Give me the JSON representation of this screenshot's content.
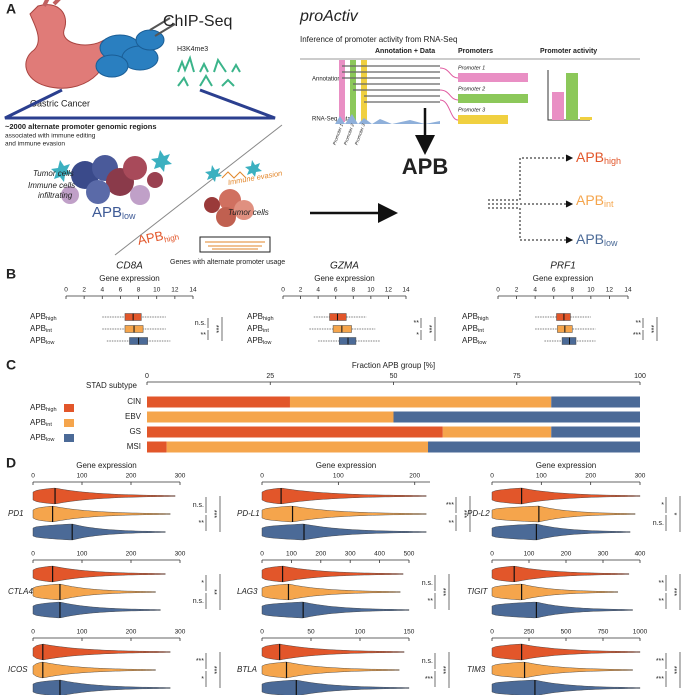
{
  "panel_labels": [
    "A",
    "B",
    "C",
    "D"
  ],
  "panel_a": {
    "stomach_label": "Gastric Cancer",
    "chip": "ChIP-Seq",
    "mark": "H3K4me3",
    "regions_title": "~2000 alternate promoter genomic regions",
    "regions_lines": [
      "associated with immune editing",
      "and immune evasion"
    ],
    "tumor_cells_left": "Tumor cells",
    "immune_lines": [
      "Immune cells",
      "infiltrating"
    ],
    "apb_low": {
      "base": "APB",
      "sub": "low"
    },
    "apb_high": {
      "base": "APB",
      "sub": "high"
    },
    "immune_evasion": "Immune evasion",
    "tumor_cells_right": "Tumor cells",
    "genes_caption": "Genes with alternate promoter usage",
    "tool": "proActiv",
    "tool_subtitle": "Inference of promoter activity from RNA-Seq",
    "columns": [
      "Annotation + Data",
      "Promoters",
      "Promoter activity"
    ],
    "rows": [
      "Annotation",
      "RNA-Seq data"
    ],
    "promoters": [
      "Promoter 1",
      "Promoter 2",
      "Promoter 3"
    ],
    "track_promoters": [
      "Promoter 1",
      "Promoter 2",
      "Promoter 3"
    ],
    "apb": "APB",
    "apb_groups": [
      {
        "base": "APB",
        "sub": "high"
      },
      {
        "base": "APB",
        "sub": "int"
      },
      {
        "base": "APB",
        "sub": "low"
      }
    ]
  },
  "chart_data": [
    {
      "type": "box",
      "title": "CD8A",
      "xlabel": "Gene expression",
      "group_label": "APB",
      "categories": [
        "high",
        "int",
        "low"
      ],
      "colors": [
        "#e2562a",
        "#f5a54c",
        "#4b6a97"
      ],
      "xlim": [
        0,
        14
      ],
      "xticks": [
        0,
        2,
        4,
        6,
        8,
        10,
        12,
        14
      ],
      "boxes": [
        {
          "whislo": 4,
          "q1": 6.5,
          "med": 7.4,
          "q3": 8.3,
          "whishi": 11
        },
        {
          "whislo": 4,
          "q1": 6.5,
          "med": 7.5,
          "q3": 8.5,
          "whishi": 11
        },
        {
          "whislo": 4.5,
          "q1": 7,
          "med": 8,
          "q3": 9,
          "whishi": 11.5
        }
      ],
      "significance": [
        "n.s.",
        "**",
        "***"
      ]
    },
    {
      "type": "box",
      "title": "GZMA",
      "xlabel": "Gene expression",
      "group_label": "APB",
      "categories": [
        "high",
        "int",
        "low"
      ],
      "colors": [
        "#e2562a",
        "#f5a54c",
        "#4b6a97"
      ],
      "xlim": [
        0,
        14
      ],
      "xticks": [
        0,
        2,
        4,
        6,
        8,
        10,
        12,
        14
      ],
      "boxes": [
        {
          "whislo": 3.5,
          "q1": 5.3,
          "med": 6.2,
          "q3": 7.2,
          "whishi": 9.5
        },
        {
          "whislo": 3,
          "q1": 5.7,
          "med": 6.7,
          "q3": 7.8,
          "whishi": 10.5
        },
        {
          "whislo": 4,
          "q1": 6.4,
          "med": 7.4,
          "q3": 8.3,
          "whishi": 11
        }
      ],
      "significance": [
        "**",
        "*",
        "***"
      ]
    },
    {
      "type": "box",
      "title": "PRF1",
      "xlabel": "Gene expression",
      "group_label": "APB",
      "categories": [
        "high",
        "int",
        "low"
      ],
      "colors": [
        "#e2562a",
        "#f5a54c",
        "#4b6a97"
      ],
      "xlim": [
        0,
        14
      ],
      "xticks": [
        0,
        2,
        4,
        6,
        8,
        10,
        12,
        14
      ],
      "boxes": [
        {
          "whislo": 4,
          "q1": 6.3,
          "med": 7.1,
          "q3": 7.8,
          "whishi": 10
        },
        {
          "whislo": 4,
          "q1": 6.4,
          "med": 7.2,
          "q3": 8,
          "whishi": 10.5
        },
        {
          "whislo": 5,
          "q1": 6.9,
          "med": 7.7,
          "q3": 8.4,
          "whishi": 10.5
        }
      ],
      "significance": [
        "**",
        "***",
        "***"
      ]
    },
    {
      "type": "stacked_bar",
      "xlabel": "Fraction APB group [%]",
      "ylabel": "STAD subtype",
      "legend_label": "APB",
      "categories": [
        "CIN",
        "EBV",
        "GS",
        "MSI"
      ],
      "xlim": [
        0,
        100
      ],
      "xticks": [
        0,
        25,
        50,
        75,
        100
      ],
      "series": [
        {
          "name": "high",
          "color": "#e2562a",
          "values": [
            29,
            0,
            60,
            4
          ]
        },
        {
          "name": "int",
          "color": "#f5a54c",
          "values": [
            53,
            50,
            22,
            53
          ]
        },
        {
          "name": "low",
          "color": "#4b6a97",
          "values": [
            18,
            50,
            18,
            43
          ]
        }
      ]
    },
    {
      "type": "violin",
      "title": "PD1",
      "xlabel": "Gene expression",
      "xlim": [
        0,
        300
      ],
      "xticks": [
        0,
        100,
        200,
        300
      ],
      "violins": [
        {
          "color": "#e2562a",
          "median": 45,
          "max": 290
        },
        {
          "color": "#f5a54c",
          "median": 40,
          "max": 280
        },
        {
          "color": "#4b6a97",
          "median": 80,
          "max": 270
        }
      ],
      "significance": [
        "n.s.",
        "**",
        "***"
      ]
    },
    {
      "type": "violin",
      "title": "PD-L1",
      "xlabel": "Gene expression",
      "xlim": [
        0,
        220
      ],
      "xticks": [
        0,
        100,
        200
      ],
      "violins": [
        {
          "color": "#e2562a",
          "median": 25,
          "max": 215
        },
        {
          "color": "#f5a54c",
          "median": 40,
          "max": 215
        },
        {
          "color": "#4b6a97",
          "median": 55,
          "max": 215
        }
      ],
      "significance": [
        "***",
        "**",
        "***"
      ]
    },
    {
      "type": "violin",
      "title": "PD-L2",
      "xlabel": "Gene expression",
      "xlim": [
        0,
        300
      ],
      "xticks": [
        0,
        100,
        200,
        300
      ],
      "violins": [
        {
          "color": "#e2562a",
          "median": 60,
          "max": 300
        },
        {
          "color": "#f5a54c",
          "median": 95,
          "max": 290
        },
        {
          "color": "#4b6a97",
          "median": 90,
          "max": 280
        }
      ],
      "significance": [
        "*",
        "n.s.",
        "*"
      ]
    },
    {
      "type": "violin",
      "title": "CTLA4",
      "xlim": [
        0,
        300
      ],
      "xticks": [
        0,
        100,
        200,
        300
      ],
      "violins": [
        {
          "color": "#e2562a",
          "median": 40,
          "max": 270
        },
        {
          "color": "#f5a54c",
          "median": 55,
          "max": 250
        },
        {
          "color": "#4b6a97",
          "median": 55,
          "max": 260
        }
      ],
      "significance": [
        "*",
        "n.s.",
        "**"
      ]
    },
    {
      "type": "violin",
      "title": "LAG3",
      "xlim": [
        0,
        500
      ],
      "xticks": [
        0,
        100,
        200,
        300,
        400,
        500
      ],
      "violins": [
        {
          "color": "#e2562a",
          "median": 70,
          "max": 480
        },
        {
          "color": "#f5a54c",
          "median": 90,
          "max": 470
        },
        {
          "color": "#4b6a97",
          "median": 140,
          "max": 500
        }
      ],
      "significance": [
        "n.s.",
        "**",
        "***"
      ]
    },
    {
      "type": "violin",
      "title": "TIGIT",
      "xlim": [
        0,
        400
      ],
      "xticks": [
        0,
        100,
        200,
        300,
        400
      ],
      "violins": [
        {
          "color": "#e2562a",
          "median": 60,
          "max": 370
        },
        {
          "color": "#f5a54c",
          "median": 80,
          "max": 340
        },
        {
          "color": "#4b6a97",
          "median": 120,
          "max": 380
        }
      ],
      "significance": [
        "**",
        "**",
        "***"
      ]
    },
    {
      "type": "violin",
      "title": "ICOS",
      "xlim": [
        0,
        300
      ],
      "xticks": [
        0,
        100,
        200,
        300
      ],
      "violins": [
        {
          "color": "#e2562a",
          "median": 20,
          "max": 280
        },
        {
          "color": "#f5a54c",
          "median": 20,
          "max": 250
        },
        {
          "color": "#4b6a97",
          "median": 55,
          "max": 280
        }
      ],
      "significance": [
        "***",
        "*",
        "***"
      ]
    },
    {
      "type": "violin",
      "title": "BTLA",
      "xlim": [
        0,
        150
      ],
      "xticks": [
        0,
        50,
        100,
        150
      ],
      "violins": [
        {
          "color": "#e2562a",
          "median": 18,
          "max": 145
        },
        {
          "color": "#f5a54c",
          "median": 25,
          "max": 140
        },
        {
          "color": "#4b6a97",
          "median": 35,
          "max": 150
        }
      ],
      "significance": [
        "n.s.",
        "***",
        "***"
      ]
    },
    {
      "type": "violin",
      "title": "TIM3",
      "xlim": [
        0,
        1000
      ],
      "xticks": [
        0,
        250,
        500,
        750,
        1000
      ],
      "violins": [
        {
          "color": "#e2562a",
          "median": 200,
          "max": 1000
        },
        {
          "color": "#f5a54c",
          "median": 220,
          "max": 950
        },
        {
          "color": "#4b6a97",
          "median": 290,
          "max": 1000
        }
      ],
      "significance": [
        "***",
        "***",
        "***"
      ]
    }
  ]
}
